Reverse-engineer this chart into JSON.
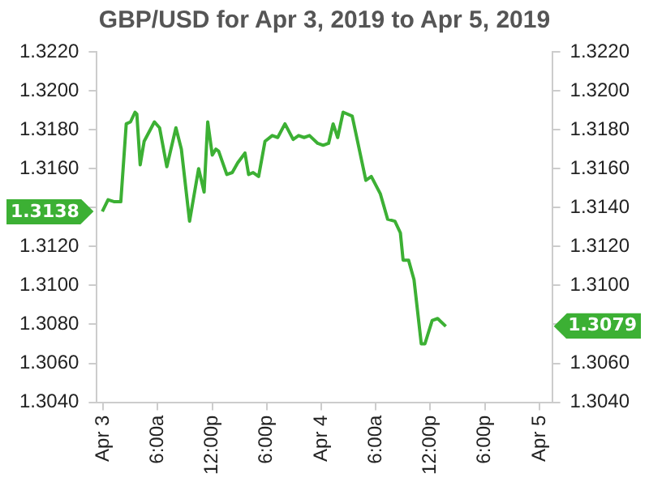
{
  "chart_data": {
    "type": "line",
    "title": "GBP/USD for Apr 3, 2019 to Apr 5, 2019",
    "x": [
      "2019-04-02T23:54",
      "2019-04-03T00:32",
      "2019-04-03T01:14",
      "2019-04-03T01:56",
      "2019-04-03T02:32",
      "2019-04-03T03:00",
      "2019-04-03T03:30",
      "2019-04-03T03:42",
      "2019-04-03T04:04",
      "2019-04-03T04:30",
      "2019-04-03T05:38",
      "2019-04-03T06:12",
      "2019-04-03T07:00",
      "2019-04-03T08:00",
      "2019-04-03T08:36",
      "2019-04-03T09:30",
      "2019-04-03T10:30",
      "2019-04-03T11:06",
      "2019-04-03T11:30",
      "2019-04-03T12:00",
      "2019-04-03T12:24",
      "2019-04-03T12:42",
      "2019-04-03T13:36",
      "2019-04-03T14:12",
      "2019-04-03T14:48",
      "2019-04-03T15:36",
      "2019-04-03T16:00",
      "2019-04-03T16:30",
      "2019-04-03T17:06",
      "2019-04-03T17:48",
      "2019-04-03T18:36",
      "2019-04-03T19:12",
      "2019-04-03T20:00",
      "2019-04-03T20:54",
      "2019-04-03T21:30",
      "2019-04-03T22:06",
      "2019-04-03T22:42",
      "2019-04-03T23:36",
      "2019-04-04T00:12",
      "2019-04-04T00:48",
      "2019-04-04T01:18",
      "2019-04-04T01:48",
      "2019-04-04T02:24",
      "2019-04-04T03:24",
      "2019-04-04T04:54",
      "2019-04-04T05:30",
      "2019-04-04T06:30",
      "2019-04-04T07:18",
      "2019-04-04T08:06",
      "2019-04-04T08:42",
      "2019-04-04T09:00",
      "2019-04-04T09:36",
      "2019-04-04T10:12",
      "2019-04-04T11:00",
      "2019-04-04T11:24",
      "2019-04-04T12:12",
      "2019-04-04T12:48",
      "2019-04-04T13:42"
    ],
    "series": [
      {
        "color": "#3cb034",
        "values": [
          1.3138,
          1.3144,
          1.3143,
          1.3143,
          1.3183,
          1.3184,
          1.3189,
          1.3188,
          1.3162,
          1.3174,
          1.3184,
          1.3181,
          1.3161,
          1.3181,
          1.317,
          1.3133,
          1.316,
          1.3148,
          1.3184,
          1.3167,
          1.317,
          1.3169,
          1.3157,
          1.3158,
          1.3163,
          1.3168,
          1.3157,
          1.3158,
          1.3156,
          1.3174,
          1.3177,
          1.3176,
          1.3183,
          1.3175,
          1.3177,
          1.3176,
          1.3177,
          1.3173,
          1.3172,
          1.3173,
          1.3183,
          1.3176,
          1.3189,
          1.3187,
          1.3154,
          1.3156,
          1.3147,
          1.3134,
          1.3133,
          1.3127,
          1.3113,
          1.3113,
          1.3103,
          1.307,
          1.307,
          1.3082,
          1.3083,
          1.3079
        ]
      }
    ],
    "xlim": [
      "2019-04-02T23:18",
      "2019-04-05T01:24"
    ],
    "xticks": [
      {
        "value": "2019-04-03T00:00",
        "label": "Apr 3"
      },
      {
        "value": "2019-04-03T06:00",
        "label": "6:00a"
      },
      {
        "value": "2019-04-03T12:00",
        "label": "12:00p"
      },
      {
        "value": "2019-04-03T18:00",
        "label": "6:00p"
      },
      {
        "value": "2019-04-04T00:00",
        "label": "Apr 4"
      },
      {
        "value": "2019-04-04T06:00",
        "label": "6:00a"
      },
      {
        "value": "2019-04-04T12:00",
        "label": "12:00p"
      },
      {
        "value": "2019-04-04T18:00",
        "label": "6:00p"
      },
      {
        "value": "2019-04-05T00:00",
        "label": "Apr 5"
      }
    ],
    "ylim": [
      1.304,
      1.322
    ],
    "yticks": [
      {
        "value": 1.304,
        "label": "1.3040"
      },
      {
        "value": 1.306,
        "label": "1.3060"
      },
      {
        "value": 1.308,
        "label": "1.3080"
      },
      {
        "value": 1.31,
        "label": "1.3100"
      },
      {
        "value": 1.312,
        "label": "1.3120"
      },
      {
        "value": 1.314,
        "label": null
      },
      {
        "value": 1.316,
        "label": "1.3160"
      },
      {
        "value": 1.318,
        "label": "1.3180"
      },
      {
        "value": 1.32,
        "label": "1.3200"
      },
      {
        "value": 1.322,
        "label": "1.3220"
      }
    ],
    "y2lim": [
      1.304,
      1.322
    ],
    "y2ticks": [
      {
        "value": 1.304,
        "label": "1.3040"
      },
      {
        "value": 1.306,
        "label": "1.3060"
      },
      {
        "value": 1.308,
        "label": null
      },
      {
        "value": 1.31,
        "label": "1.3100"
      },
      {
        "value": 1.312,
        "label": "1.3120"
      },
      {
        "value": 1.314,
        "label": "1.3140"
      },
      {
        "value": 1.316,
        "label": "1.3160"
      },
      {
        "value": 1.318,
        "label": "1.3180"
      },
      {
        "value": 1.32,
        "label": "1.3200"
      },
      {
        "value": 1.322,
        "label": "1.3220"
      }
    ],
    "annotations": [
      "1.3138",
      "1.3079"
    ],
    "legend": false,
    "marker": "none",
    "line_style": "solid"
  }
}
